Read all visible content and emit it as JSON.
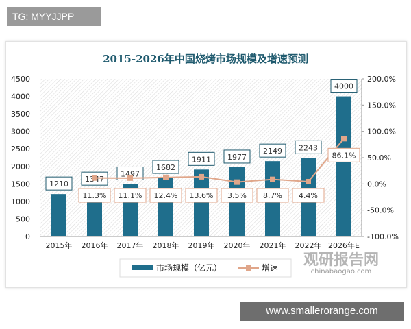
{
  "top_tag": "TG: MYYJJPP",
  "bottom_site": "www.smallerorange.com",
  "watermark": {
    "name": "观研报告网",
    "url": "chinabaogao.com"
  },
  "chart_data": {
    "type": "bar+line",
    "title": "2015-2026年中国烧烤市场规模及增速预测",
    "categories": [
      "2015年",
      "2016年",
      "2017年",
      "2018年",
      "2019年",
      "2020年",
      "2021年",
      "2022年",
      "2026年E"
    ],
    "series": [
      {
        "name": "市场规模（亿元）",
        "type": "bar",
        "axis": "left",
        "color": "#1f6e8c",
        "values": [
          1210,
          1347,
          1497,
          1682,
          1911,
          1977,
          2149,
          2243,
          4000
        ],
        "labels": [
          "1210",
          "1347",
          "1497",
          "1682",
          "1911",
          "1977",
          "2149",
          "2243",
          "4000"
        ]
      },
      {
        "name": "增速",
        "type": "line",
        "axis": "right",
        "color": "#e0a68a",
        "values": [
          null,
          11.3,
          11.1,
          12.4,
          13.6,
          3.5,
          8.7,
          4.4,
          86.1
        ],
        "labels": [
          null,
          "11.3%",
          "11.1%",
          "12.4%",
          "13.6%",
          "3.5%",
          "8.7%",
          "4.4%",
          "86.1%"
        ]
      }
    ],
    "y_left": {
      "range": [
        0,
        4500
      ],
      "ticks": [
        "0",
        "500",
        "1000",
        "1500",
        "2000",
        "2500",
        "3000",
        "3500",
        "4000",
        "4500"
      ]
    },
    "y_right": {
      "range": [
        -100,
        200
      ],
      "ticks": [
        "-100.0%",
        "-50.0%",
        "0.0%",
        "50.0%",
        "100.0%",
        "150.0%",
        "200.0%"
      ]
    },
    "legend_position": "bottom",
    "grid": false
  }
}
